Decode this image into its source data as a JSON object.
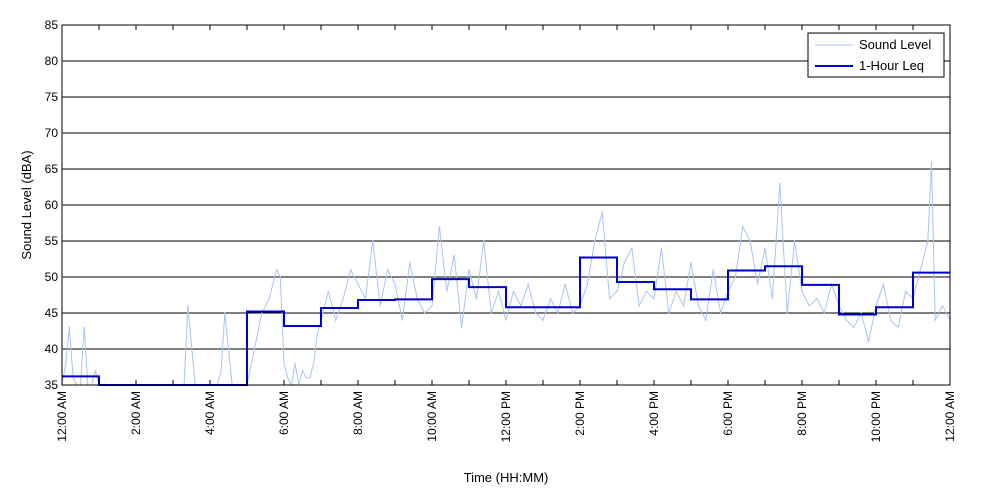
{
  "chart_data": {
    "type": "line",
    "title": "",
    "xlabel": "Time (HH:MM)",
    "ylabel": "Sound Level (dBA)",
    "xlim": [
      0,
      24
    ],
    "ylim": [
      35,
      85
    ],
    "yticks": [
      35,
      40,
      45,
      50,
      55,
      60,
      65,
      70,
      75,
      80,
      85
    ],
    "xticks": [
      {
        "hour": 0,
        "label": "12:00 AM"
      },
      {
        "hour": 2,
        "label": "2:00 AM"
      },
      {
        "hour": 4,
        "label": "4:00 AM"
      },
      {
        "hour": 6,
        "label": "6:00 AM"
      },
      {
        "hour": 8,
        "label": "8:00 AM"
      },
      {
        "hour": 10,
        "label": "10:00 AM"
      },
      {
        "hour": 12,
        "label": "12:00 PM"
      },
      {
        "hour": 14,
        "label": "2:00 PM"
      },
      {
        "hour": 16,
        "label": "4:00 PM"
      },
      {
        "hour": 18,
        "label": "6:00 PM"
      },
      {
        "hour": 20,
        "label": "8:00 PM"
      },
      {
        "hour": 22,
        "label": "10:00 PM"
      },
      {
        "hour": 24,
        "label": "12:00 AM"
      }
    ],
    "grid": "horizontal",
    "legend_position": "top-right",
    "colors": {
      "sound_level": "#a9c3f2",
      "leq": "#0000cc"
    },
    "series": [
      {
        "name": "Sound Level",
        "x": [
          0.0,
          0.1,
          0.2,
          0.3,
          0.4,
          0.5,
          0.6,
          0.7,
          0.8,
          0.9,
          1.0,
          1.2,
          1.4,
          1.6,
          1.8,
          2.0,
          2.2,
          2.4,
          2.6,
          2.8,
          3.0,
          3.1,
          3.2,
          3.3,
          3.4,
          3.6,
          3.8,
          4.0,
          4.1,
          4.2,
          4.3,
          4.4,
          4.6,
          4.8,
          5.0,
          5.2,
          5.4,
          5.6,
          5.8,
          5.9,
          6.0,
          6.1,
          6.2,
          6.3,
          6.4,
          6.5,
          6.6,
          6.7,
          6.8,
          6.9,
          7.0,
          7.2,
          7.4,
          7.6,
          7.8,
          8.0,
          8.2,
          8.4,
          8.6,
          8.8,
          9.0,
          9.2,
          9.4,
          9.6,
          9.8,
          10.0,
          10.2,
          10.4,
          10.6,
          10.8,
          11.0,
          11.2,
          11.4,
          11.6,
          11.8,
          12.0,
          12.2,
          12.4,
          12.6,
          12.8,
          13.0,
          13.2,
          13.4,
          13.6,
          13.8,
          14.0,
          14.2,
          14.4,
          14.6,
          14.8,
          15.0,
          15.2,
          15.4,
          15.6,
          15.8,
          16.0,
          16.2,
          16.4,
          16.6,
          16.8,
          17.0,
          17.2,
          17.4,
          17.6,
          17.8,
          18.0,
          18.2,
          18.4,
          18.6,
          18.8,
          19.0,
          19.2,
          19.4,
          19.6,
          19.8,
          20.0,
          20.2,
          20.4,
          20.6,
          20.8,
          21.0,
          21.2,
          21.4,
          21.6,
          21.8,
          22.0,
          22.2,
          22.4,
          22.6,
          22.8,
          23.0,
          23.2,
          23.4,
          23.5,
          23.6,
          23.8,
          24.0
        ],
        "y": [
          35,
          38,
          43,
          36,
          35,
          35,
          43,
          35,
          35,
          37,
          35,
          35,
          35,
          35,
          35,
          35,
          35,
          35,
          35,
          35,
          35,
          35,
          35,
          35,
          46,
          35,
          35,
          35,
          35,
          35,
          37,
          45,
          35,
          35,
          35,
          40,
          45,
          47,
          51,
          50,
          38,
          36,
          35,
          38,
          35,
          37,
          36,
          36,
          38,
          42,
          44,
          48,
          44,
          47,
          51,
          49,
          47,
          55,
          46,
          51,
          49,
          44,
          52,
          47,
          45,
          46,
          57,
          48,
          53,
          43,
          51,
          47,
          55,
          45,
          48,
          44,
          48,
          46,
          49,
          45,
          44,
          47,
          45,
          49,
          45,
          46,
          49,
          55,
          59,
          47,
          48,
          52,
          54,
          46,
          48,
          47,
          54,
          45,
          48,
          46,
          52,
          46,
          44,
          51,
          45,
          48,
          50,
          57,
          55,
          49,
          54,
          47,
          63,
          45,
          55,
          48,
          46,
          47,
          45,
          49,
          46,
          44,
          43,
          45,
          41,
          46,
          49,
          44,
          43,
          48,
          47,
          51,
          55,
          66,
          44,
          46,
          44
        ]
      },
      {
        "name": "1-Hour Leq",
        "hours": [
          0,
          1,
          2,
          3,
          4,
          5,
          6,
          7,
          8,
          9,
          10,
          11,
          12,
          13,
          14,
          15,
          16,
          17,
          18,
          19,
          20,
          21,
          22,
          23
        ],
        "values": [
          36.2,
          35,
          35,
          35,
          35,
          45.2,
          43.2,
          45.7,
          46.8,
          46.9,
          49.7,
          48.6,
          45.8,
          45.8,
          52.7,
          49.3,
          48.3,
          46.9,
          50.9,
          51.5,
          48.9,
          44.8,
          45.8,
          50.6
        ]
      }
    ]
  }
}
